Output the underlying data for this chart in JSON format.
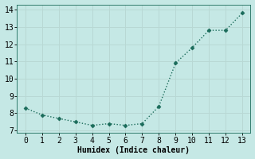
{
  "x": [
    0,
    1,
    2,
    3,
    4,
    5,
    6,
    7,
    8,
    9,
    10,
    11,
    12,
    13
  ],
  "y": [
    8.3,
    7.9,
    7.7,
    7.5,
    7.3,
    7.4,
    7.3,
    7.4,
    8.4,
    10.9,
    11.8,
    12.8,
    12.8,
    13.8
  ],
  "line_color": "#1a6b5a",
  "marker": "D",
  "marker_size": 2.5,
  "background_color": "#c5e8e5",
  "grid_color": "#b8d8d4",
  "xlabel": "Humidex (Indice chaleur)",
  "xlabel_fontsize": 7,
  "xlim": [
    -0.5,
    13.5
  ],
  "ylim": [
    6.85,
    14.3
  ],
  "yticks": [
    7,
    8,
    9,
    10,
    11,
    12,
    13,
    14
  ],
  "xticks": [
    0,
    1,
    2,
    3,
    4,
    5,
    6,
    7,
    8,
    9,
    10,
    11,
    12,
    13
  ],
  "tick_fontsize": 7,
  "line_width": 1.0,
  "linestyle": ":"
}
